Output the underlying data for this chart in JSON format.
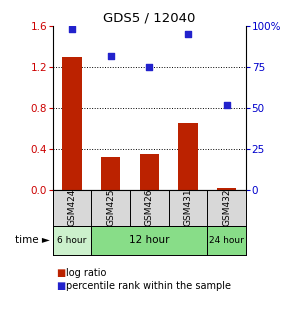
{
  "title": "GDS5 / 12040",
  "samples": [
    "GSM424",
    "GSM425",
    "GSM426",
    "GSM431",
    "GSM432"
  ],
  "log_ratio": [
    1.3,
    0.32,
    0.35,
    0.65,
    0.02
  ],
  "percentile_rank": [
    98,
    82,
    75,
    95,
    52
  ],
  "left_ylim": [
    0,
    1.6
  ],
  "right_ylim": [
    0,
    100
  ],
  "left_yticks": [
    0,
    0.4,
    0.8,
    1.2,
    1.6
  ],
  "right_yticks": [
    0,
    25,
    50,
    75,
    100
  ],
  "right_yticklabels": [
    "0",
    "25",
    "50",
    "75",
    "100%"
  ],
  "dotted_lines": [
    0.4,
    0.8,
    1.2
  ],
  "bar_color": "#bb2200",
  "dot_color": "#2222cc",
  "time_groups": [
    {
      "label": "6 hour",
      "start": 0,
      "end": 1,
      "color": "#ccf0cc"
    },
    {
      "label": "12 hour",
      "start": 1,
      "end": 4,
      "color": "#88dd88"
    },
    {
      "label": "24 hour",
      "start": 4,
      "end": 5,
      "color": "#88dd88"
    }
  ],
  "left_axis_color": "#cc0000",
  "right_axis_color": "#0000cc",
  "legend_bar_label": "log ratio",
  "legend_dot_label": "percentile rank within the sample",
  "sample_bg_color": "#d8d8d8",
  "main_bg_color": "#ffffff"
}
